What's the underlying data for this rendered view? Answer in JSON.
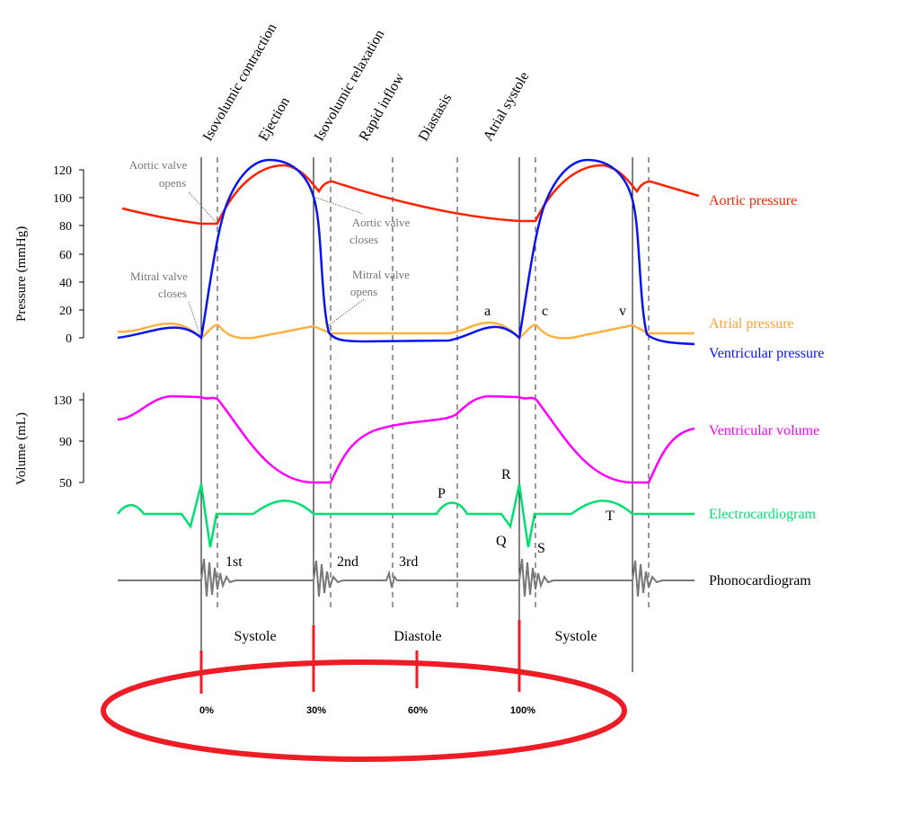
{
  "phases": [
    "Isovolumic contraction",
    "Ejection",
    "Isovolumic relaxation",
    "Rapid inflow",
    "Diastasis",
    "Atrial systole"
  ],
  "pressure_axis": {
    "label": "Pressure (mmHg)",
    "ticks": [
      "0",
      "20",
      "40",
      "60",
      "80",
      "100",
      "120"
    ]
  },
  "volume_axis": {
    "label": "Volume (mL)",
    "ticks": [
      "50",
      "90",
      "130"
    ]
  },
  "annotations": {
    "aortic_opens": [
      "Aortic valve",
      "opens"
    ],
    "aortic_closes": [
      "Aortic valve",
      "closes"
    ],
    "mitral_closes": [
      "Mitral valve",
      "closes"
    ],
    "mitral_opens": [
      "Mitral valve",
      "opens"
    ]
  },
  "waves": {
    "a": "a",
    "c": "c",
    "v": "v",
    "P": "P",
    "R": "R",
    "Q": "Q",
    "S": "S",
    "T": "T"
  },
  "heart_sounds": [
    "1st",
    "2nd",
    "3rd"
  ],
  "legend": {
    "aortic": "Aortic pressure",
    "atrial": "Atrial pressure",
    "ventricular": "Ventricular pressure",
    "volume": "Ventricular volume",
    "ecg": "Electrocardiogram",
    "phono": "Phonocardiogram"
  },
  "periods": [
    "Systole",
    "Diastole",
    "Systole"
  ],
  "percent_marks": [
    "0%",
    "30%",
    "60%",
    "100%"
  ],
  "colors": {
    "aortic": "#ff2200",
    "atrial": "#ffb040",
    "ventricular": "#0a14f0",
    "volume": "#ff00ff",
    "ecg": "#00e070",
    "phono": "#777777",
    "highlight": "#ee1c24"
  }
}
